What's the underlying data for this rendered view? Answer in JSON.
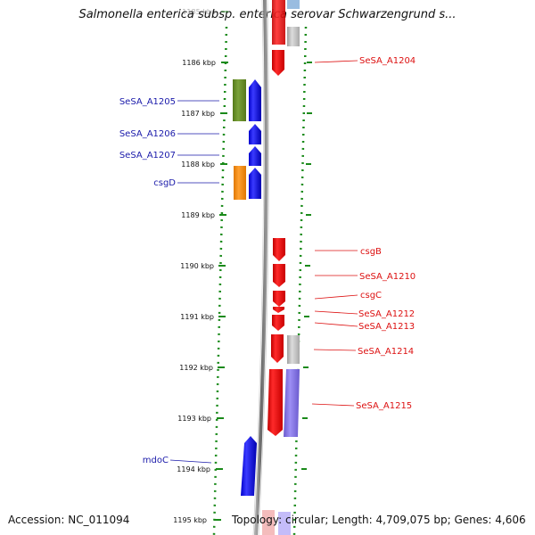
{
  "title": "Salmonella enterica subsp. enterica serovar Schwarzengrund s...",
  "footer": {
    "accession": "Accession: NC_011094",
    "topology": "Topology: circular; Length: 4,709,075 bp; Genes: 4,606"
  },
  "ticks": [
    {
      "label": "1185 kbp",
      "faded": true
    },
    {
      "label": "1186 kbp"
    },
    {
      "label": "1187 kbp"
    },
    {
      "label": "1188 kbp"
    },
    {
      "label": "1189 kbp"
    },
    {
      "label": "1190 kbp"
    },
    {
      "label": "1191 kbp"
    },
    {
      "label": "1192 kbp"
    },
    {
      "label": "1193 kbp"
    },
    {
      "label": "1194 kbp"
    },
    {
      "label": "1195 kbp"
    }
  ],
  "genes_left": [
    {
      "label": "SeSA_A1205",
      "color": "#1a1aaa"
    },
    {
      "label": "SeSA_A1206",
      "color": "#1a1aaa"
    },
    {
      "label": "SeSA_A1207",
      "color": "#1a1aaa"
    },
    {
      "label": "csgD",
      "color": "#1a1aaa"
    },
    {
      "label": "mdoC",
      "color": "#1a1aaa"
    }
  ],
  "genes_right": [
    {
      "label": "SeSA_A1204",
      "color": "#dd1111"
    },
    {
      "label": "csgB",
      "color": "#dd1111"
    },
    {
      "label": "SeSA_A1210",
      "color": "#dd1111"
    },
    {
      "label": "csgC",
      "color": "#dd1111"
    },
    {
      "label": "SeSA_A1212",
      "color": "#dd1111"
    },
    {
      "label": "SeSA_A1213",
      "color": "#dd1111"
    },
    {
      "label": "SeSA_A1214",
      "color": "#dd1111"
    },
    {
      "label": "SeSA_A1215",
      "color": "#dd1111"
    }
  ],
  "colors": {
    "forward": "#0000ee",
    "reverse": "#ee0000",
    "cog_green": "#6b8e23",
    "cog_orange": "#ff8c00",
    "cog_gray": "#b0b0b0",
    "cog_purple": "#7b68ee",
    "tick_green": "#1a8a1a",
    "backbone": "#888888"
  }
}
